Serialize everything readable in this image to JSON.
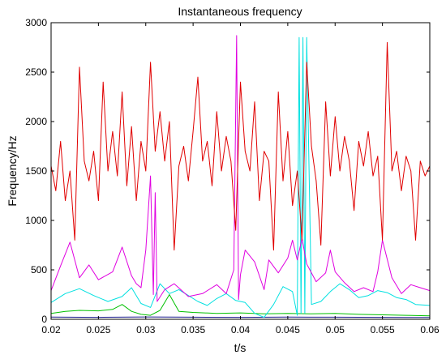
{
  "chart_data": {
    "type": "line",
    "title": "Instantaneous frequency",
    "xlabel": "t/s",
    "ylabel": "Frequency/Hz",
    "xlim": [
      0.02,
      0.06
    ],
    "ylim": [
      0,
      3000
    ],
    "xticks": [
      "0.02",
      "0.025",
      "0.03",
      "0.035",
      "0.04",
      "0.045",
      "0.05",
      "0.055",
      "0.06"
    ],
    "xtick_values": [
      0.02,
      0.025,
      0.03,
      0.035,
      0.04,
      0.045,
      0.05,
      0.055,
      0.06
    ],
    "yticks": [
      "0",
      "500",
      "1000",
      "1500",
      "2000",
      "2500",
      "3000"
    ],
    "ytick_values": [
      0,
      500,
      1000,
      1500,
      2000,
      2500,
      3000
    ],
    "grid": false,
    "series": [
      {
        "color": "#1a1a8c",
        "x": [
          0.02,
          0.025,
          0.03,
          0.035,
          0.04,
          0.045,
          0.05,
          0.055,
          0.06
        ],
        "y": [
          22,
          20,
          24,
          21,
          20,
          22,
          21,
          20,
          18
        ]
      },
      {
        "color": "#00c000",
        "x": [
          0.02,
          0.0215,
          0.023,
          0.025,
          0.0265,
          0.0275,
          0.0285,
          0.0295,
          0.0305,
          0.0315,
          0.0325,
          0.0335,
          0.035,
          0.0375,
          0.04,
          0.0425,
          0.045,
          0.0475,
          0.05,
          0.0525,
          0.055,
          0.0575,
          0.06
        ],
        "y": [
          60,
          80,
          90,
          85,
          100,
          150,
          80,
          50,
          40,
          90,
          250,
          80,
          70,
          60,
          65,
          55,
          60,
          55,
          60,
          50,
          45,
          40,
          35
        ]
      },
      {
        "color": "#00e0e0",
        "x": [
          0.02,
          0.0215,
          0.023,
          0.0245,
          0.026,
          0.0275,
          0.0285,
          0.0295,
          0.0305,
          0.0315,
          0.0325,
          0.0335,
          0.0345,
          0.0355,
          0.0365,
          0.0375,
          0.0385,
          0.0395,
          0.0405,
          0.0415,
          0.0425,
          0.0435,
          0.0445,
          0.0455,
          0.046,
          0.0462,
          0.0464,
          0.0466,
          0.0468,
          0.047,
          0.0475,
          0.0485,
          0.0495,
          0.0505,
          0.0515,
          0.0525,
          0.0535,
          0.0545,
          0.0555,
          0.0565,
          0.0575,
          0.0585,
          0.06
        ],
        "y": [
          170,
          260,
          310,
          240,
          180,
          230,
          320,
          160,
          120,
          360,
          260,
          300,
          240,
          180,
          140,
          210,
          260,
          190,
          170,
          60,
          20,
          150,
          330,
          280,
          40,
          2850,
          60,
          2850,
          60,
          2850,
          150,
          180,
          280,
          360,
          300,
          220,
          240,
          290,
          270,
          220,
          200,
          150,
          140
        ]
      },
      {
        "color": "#e000e0",
        "x": [
          0.02,
          0.021,
          0.022,
          0.023,
          0.024,
          0.025,
          0.0265,
          0.0275,
          0.0285,
          0.029,
          0.0295,
          0.03,
          0.0305,
          0.0308,
          0.031,
          0.0312,
          0.032,
          0.033,
          0.0345,
          0.036,
          0.0375,
          0.0385,
          0.0393,
          0.0396,
          0.0398,
          0.04,
          0.0405,
          0.0415,
          0.0425,
          0.043,
          0.044,
          0.045,
          0.0455,
          0.046,
          0.0465,
          0.047,
          0.048,
          0.049,
          0.0495,
          0.05,
          0.051,
          0.052,
          0.053,
          0.054,
          0.0545,
          0.055,
          0.056,
          0.057,
          0.058,
          0.059,
          0.06
        ],
        "y": [
          290,
          540,
          780,
          420,
          550,
          400,
          480,
          730,
          440,
          360,
          320,
          700,
          1450,
          250,
          1280,
          180,
          300,
          360,
          230,
          260,
          350,
          260,
          500,
          2870,
          200,
          450,
          700,
          580,
          300,
          600,
          470,
          620,
          800,
          600,
          820,
          560,
          380,
          470,
          700,
          480,
          370,
          280,
          320,
          280,
          480,
          800,
          420,
          260,
          350,
          320,
          290
        ]
      },
      {
        "color": "#e00000",
        "x": [
          0.02,
          0.0205,
          0.021,
          0.0215,
          0.022,
          0.0225,
          0.023,
          0.0235,
          0.024,
          0.0245,
          0.025,
          0.0255,
          0.026,
          0.0265,
          0.027,
          0.0275,
          0.028,
          0.0285,
          0.029,
          0.0295,
          0.03,
          0.0305,
          0.031,
          0.0315,
          0.032,
          0.0325,
          0.033,
          0.0335,
          0.034,
          0.0345,
          0.035,
          0.0355,
          0.036,
          0.0365,
          0.037,
          0.0375,
          0.038,
          0.0385,
          0.039,
          0.0395,
          0.04,
          0.0405,
          0.041,
          0.0415,
          0.042,
          0.0425,
          0.043,
          0.0435,
          0.044,
          0.0445,
          0.045,
          0.0455,
          0.046,
          0.0465,
          0.047,
          0.0475,
          0.048,
          0.0485,
          0.049,
          0.0495,
          0.05,
          0.0505,
          0.051,
          0.0515,
          0.052,
          0.0525,
          0.053,
          0.0535,
          0.054,
          0.0545,
          0.055,
          0.0555,
          0.056,
          0.0565,
          0.057,
          0.0575,
          0.058,
          0.0585,
          0.059,
          0.0595,
          0.06
        ],
        "y": [
          1550,
          1300,
          1800,
          1200,
          1500,
          800,
          2550,
          1600,
          1400,
          1700,
          1200,
          2400,
          1500,
          1900,
          1450,
          2300,
          1350,
          1950,
          1200,
          1800,
          1500,
          2600,
          1700,
          2100,
          1600,
          2000,
          700,
          1550,
          1750,
          1400,
          1900,
          2450,
          1600,
          1800,
          1350,
          2100,
          1500,
          1850,
          1600,
          900,
          2400,
          1700,
          1500,
          2200,
          1200,
          1700,
          1600,
          700,
          2300,
          1400,
          1900,
          1150,
          1500,
          800,
          2600,
          1750,
          1400,
          750,
          2200,
          1450,
          2050,
          1500,
          1850,
          1600,
          1100,
          1800,
          1550,
          1900,
          1450,
          1650,
          800,
          2800,
          1500,
          1700,
          1300,
          1650,
          1500,
          800,
          1600,
          1450,
          1550
        ]
      }
    ]
  }
}
